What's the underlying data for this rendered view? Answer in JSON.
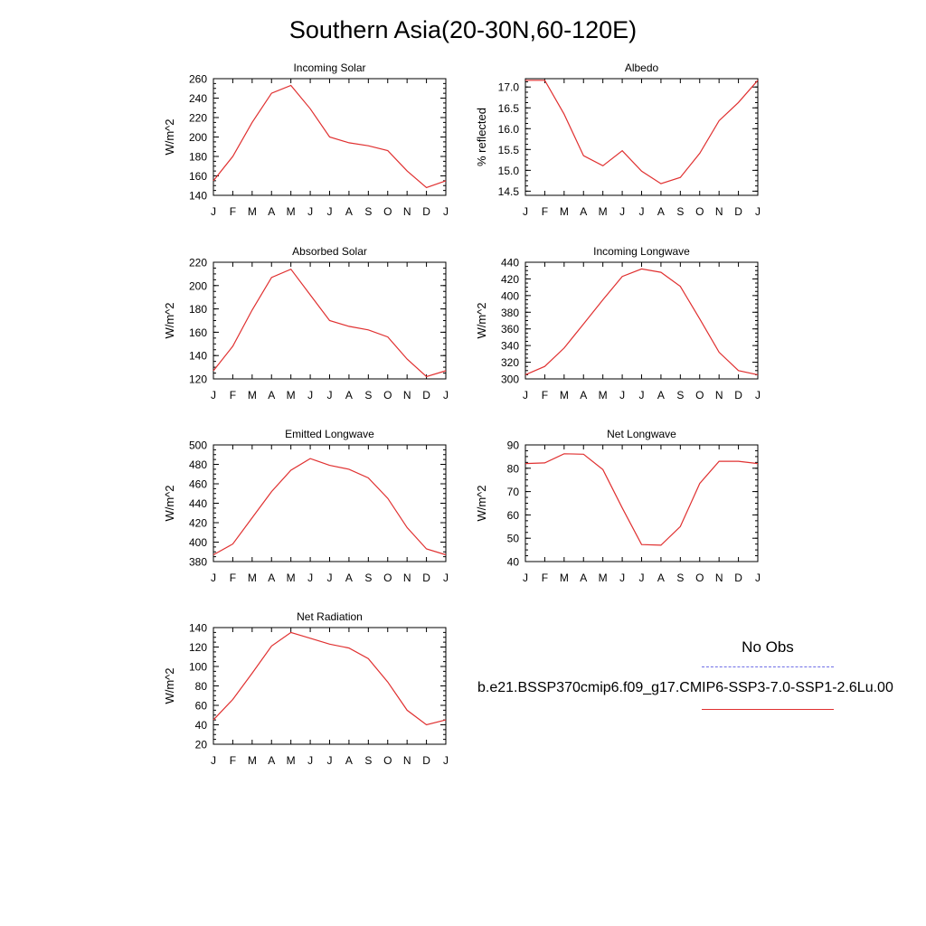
{
  "title": "Southern Asia(20-30N,60-120E)",
  "legend": {
    "obs_label": "No Obs",
    "case_label": "b.e21.BSSP370cmip6.f09_g17.CMIP6-SSP3-7.0-SSP1-2.6Lu.00",
    "obs_color": "#6f6fe6",
    "case_color": "#e03030"
  },
  "chart_data": [
    {
      "type": "line",
      "title": "Incoming Solar",
      "ylabel": "W/m^2",
      "categories": [
        "J",
        "F",
        "M",
        "A",
        "M",
        "J",
        "J",
        "A",
        "S",
        "O",
        "N",
        "D",
        "J"
      ],
      "ylim": [
        140,
        260
      ],
      "yticks": [
        "140",
        "160",
        "180",
        "200",
        "220",
        "240",
        "260"
      ],
      "values": [
        155,
        180,
        215,
        245,
        253,
        229,
        200,
        194,
        191,
        186,
        165,
        148,
        155
      ]
    },
    {
      "type": "line",
      "title": "Albedo",
      "ylabel": "% reflected",
      "categories": [
        "J",
        "F",
        "M",
        "A",
        "M",
        "J",
        "J",
        "A",
        "S",
        "O",
        "N",
        "D",
        "J"
      ],
      "ylim": [
        14.4,
        17.2
      ],
      "yticks": [
        "14.5",
        "15.0",
        "15.5",
        "16.0",
        "16.5",
        "17.0"
      ],
      "values": [
        17.16,
        17.16,
        16.35,
        15.35,
        15.11,
        15.47,
        14.98,
        14.68,
        14.83,
        15.41,
        16.19,
        16.63,
        17.16
      ]
    },
    {
      "type": "line",
      "title": "Absorbed Solar",
      "ylabel": "W/m^2",
      "categories": [
        "J",
        "F",
        "M",
        "A",
        "M",
        "J",
        "J",
        "A",
        "S",
        "O",
        "N",
        "D",
        "J"
      ],
      "ylim": [
        120,
        220
      ],
      "yticks": [
        "120",
        "140",
        "160",
        "180",
        "200",
        "220"
      ],
      "values": [
        127,
        148,
        179,
        207,
        214,
        192,
        170,
        165,
        162,
        156,
        137,
        122,
        127
      ]
    },
    {
      "type": "line",
      "title": "Incoming Longwave",
      "ylabel": "W/m^2",
      "categories": [
        "J",
        "F",
        "M",
        "A",
        "M",
        "J",
        "J",
        "A",
        "S",
        "O",
        "N",
        "D",
        "J"
      ],
      "ylim": [
        300,
        440
      ],
      "yticks": [
        "300",
        "320",
        "340",
        "360",
        "380",
        "400",
        "420",
        "440"
      ],
      "values": [
        305,
        315,
        337,
        366,
        395,
        423,
        432,
        428,
        411,
        372,
        332,
        310,
        305
      ]
    },
    {
      "type": "line",
      "title": "Emitted Longwave",
      "ylabel": "W/m^2",
      "categories": [
        "J",
        "F",
        "M",
        "A",
        "M",
        "J",
        "J",
        "A",
        "S",
        "O",
        "N",
        "D",
        "J"
      ],
      "ylim": [
        380,
        500
      ],
      "yticks": [
        "380",
        "400",
        "420",
        "440",
        "460",
        "480",
        "500"
      ],
      "values": [
        387,
        398,
        425,
        452,
        474,
        486,
        479,
        475,
        466,
        445,
        415,
        393,
        387
      ]
    },
    {
      "type": "line",
      "title": "Net Longwave",
      "ylabel": "W/m^2",
      "categories": [
        "J",
        "F",
        "M",
        "A",
        "M",
        "J",
        "J",
        "A",
        "S",
        "O",
        "N",
        "D",
        "J"
      ],
      "ylim": [
        40,
        90
      ],
      "yticks": [
        "40",
        "50",
        "60",
        "70",
        "80",
        "90"
      ],
      "values": [
        82,
        82.3,
        86.2,
        86,
        79.4,
        63,
        47.3,
        47,
        55,
        73.5,
        83,
        83,
        82
      ]
    },
    {
      "type": "line",
      "title": "Net Radiation",
      "ylabel": "W/m^2",
      "categories": [
        "J",
        "F",
        "M",
        "A",
        "M",
        "J",
        "J",
        "A",
        "S",
        "O",
        "N",
        "D",
        "J"
      ],
      "ylim": [
        20,
        140
      ],
      "yticks": [
        "20",
        "40",
        "60",
        "80",
        "100",
        "120",
        "140"
      ],
      "values": [
        45,
        66,
        93,
        121,
        135,
        129,
        123,
        119,
        108,
        84,
        55,
        40,
        45
      ]
    }
  ]
}
